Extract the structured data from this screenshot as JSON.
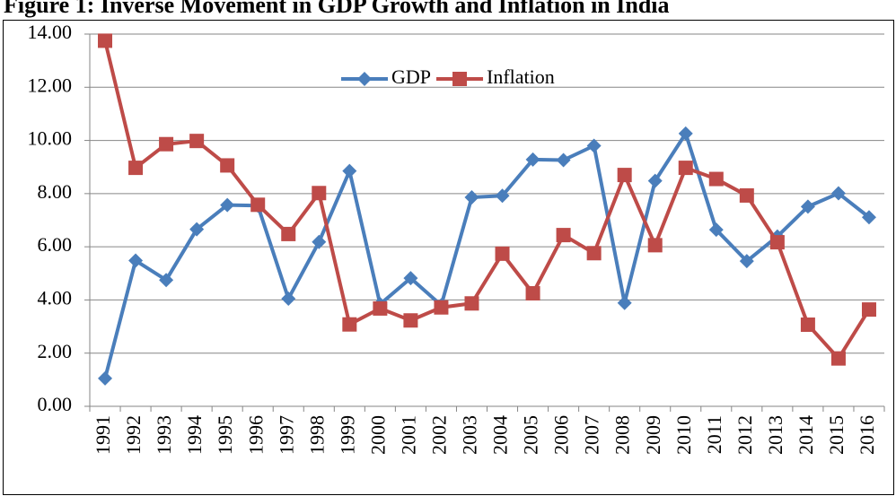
{
  "chart_data": {
    "type": "line",
    "title": "Figure 1: Inverse Movement in GDP Growth and Inflation in India",
    "categories": [
      "1991",
      "1992",
      "1993",
      "1994",
      "1995",
      "1996",
      "1997",
      "1998",
      "1999",
      "2000",
      "2001",
      "2002",
      "2003",
      "2004",
      "2005",
      "2006",
      "2007",
      "2008",
      "2009",
      "2010",
      "2011",
      "2012",
      "2013",
      "2014",
      "2015",
      "2016"
    ],
    "series": [
      {
        "name": "GDP",
        "color": "#4a7ebb",
        "marker": "diamond",
        "values": [
          1.05,
          5.48,
          4.75,
          6.66,
          7.57,
          7.55,
          4.05,
          6.18,
          8.85,
          3.84,
          4.82,
          3.8,
          7.86,
          7.92,
          9.28,
          9.26,
          9.8,
          3.89,
          8.48,
          10.26,
          6.64,
          5.46,
          6.39,
          7.51,
          8.01,
          7.11
        ]
      },
      {
        "name": "Inflation",
        "color": "#be4b48",
        "marker": "square",
        "values": [
          13.75,
          8.97,
          9.86,
          9.98,
          9.06,
          7.58,
          6.48,
          8.02,
          3.08,
          3.68,
          3.23,
          3.72,
          3.87,
          5.74,
          4.25,
          6.44,
          5.76,
          8.7,
          6.06,
          8.97,
          8.55,
          7.93,
          6.17,
          3.07,
          1.8,
          3.64
        ]
      }
    ],
    "ylim": [
      0,
      14
    ],
    "yticks": [
      {
        "value": 0,
        "label": "0.00"
      },
      {
        "value": 2,
        "label": "2.00"
      },
      {
        "value": 4,
        "label": "4.00"
      },
      {
        "value": 6,
        "label": "6.00"
      },
      {
        "value": 8,
        "label": "8.00"
      },
      {
        "value": 10,
        "label": "10.00"
      },
      {
        "value": 12,
        "label": "12.00"
      },
      {
        "value": 14,
        "label": "14.00"
      }
    ],
    "grid": true,
    "legend": "top"
  }
}
